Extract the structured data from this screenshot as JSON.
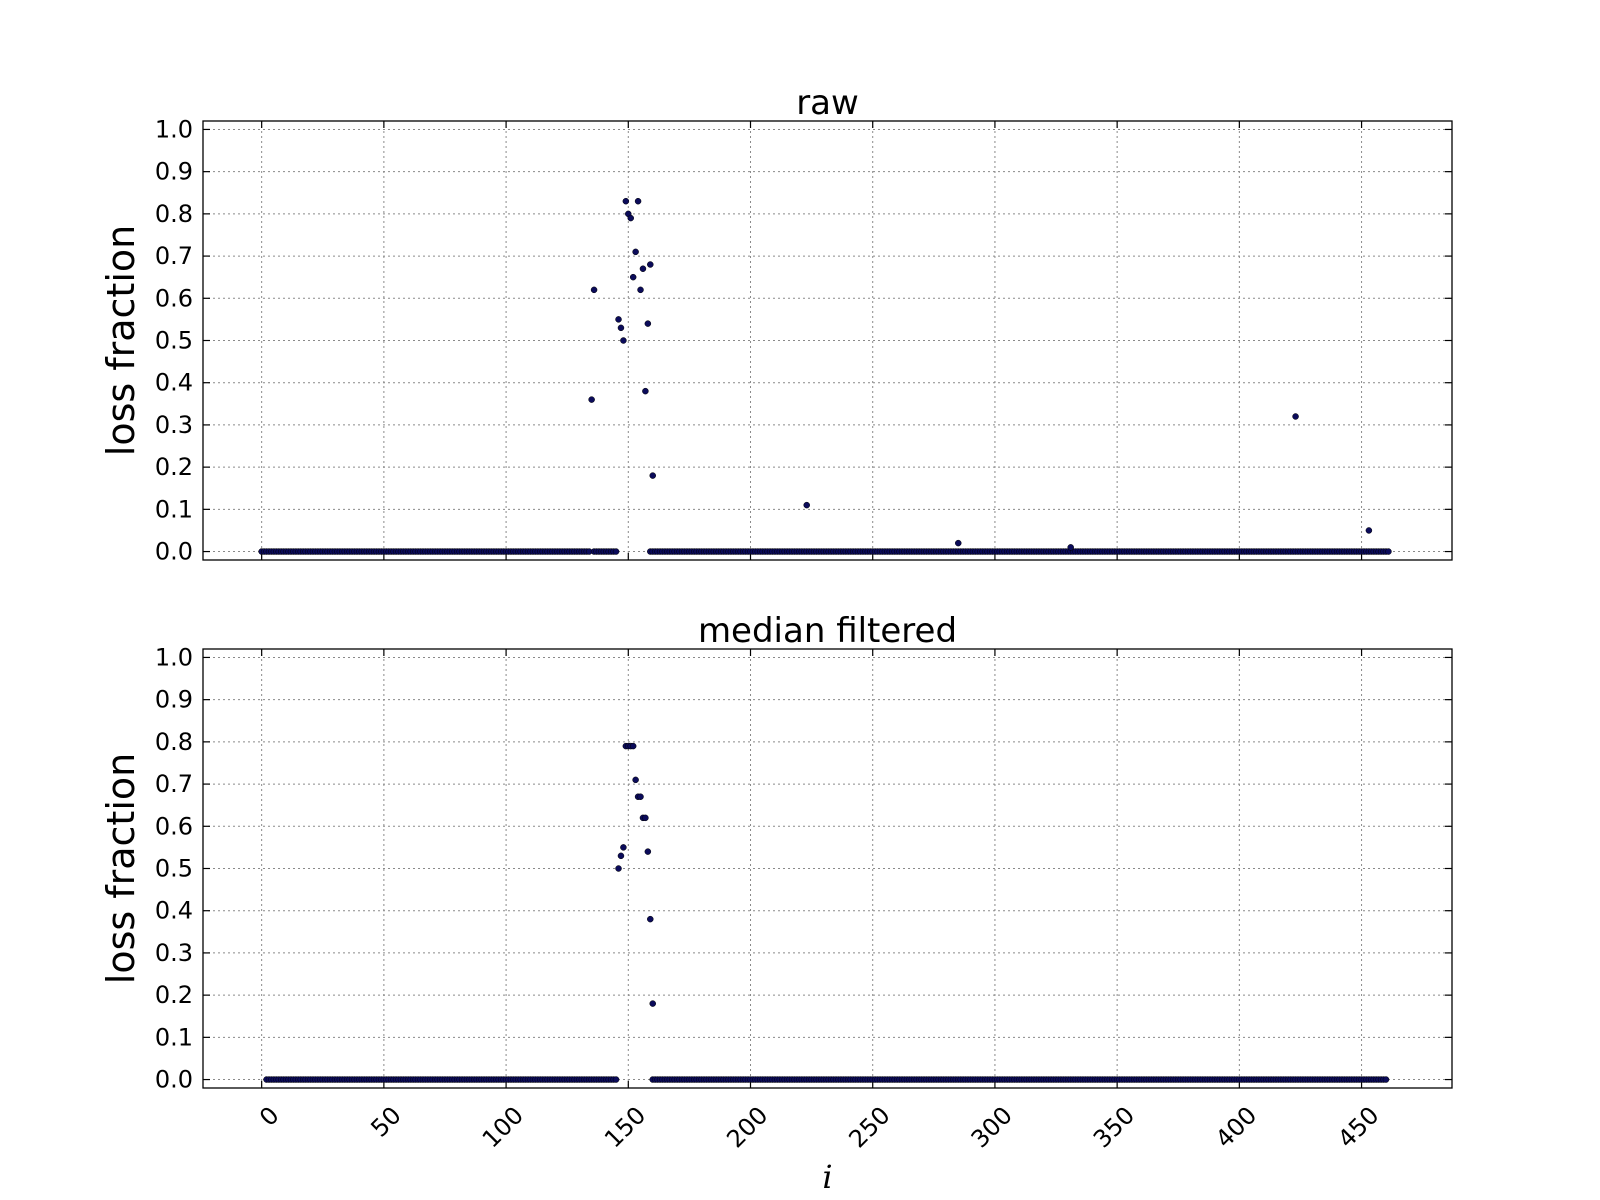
{
  "chart_data": [
    {
      "type": "scatter",
      "title": "raw",
      "xlabel": "",
      "ylabel": "loss fraction",
      "xlim": [
        -24,
        487
      ],
      "ylim": [
        -0.02,
        1.02
      ],
      "xticks": [
        0,
        50,
        100,
        150,
        200,
        250,
        300,
        350,
        400,
        450
      ],
      "yticks": [
        0.0,
        0.1,
        0.2,
        0.3,
        0.4,
        0.5,
        0.6,
        0.7,
        0.8,
        0.9,
        1.0
      ],
      "show_xtick_labels": false,
      "grid": true,
      "marker_color": "#0b0b5a",
      "zero_ranges": [
        [
          0,
          134
        ],
        [
          136,
          145
        ],
        [
          159,
          461
        ]
      ],
      "points": [
        {
          "x": 135,
          "y": 0.36
        },
        {
          "x": 136,
          "y": 0.62
        },
        {
          "x": 146,
          "y": 0.55
        },
        {
          "x": 147,
          "y": 0.53
        },
        {
          "x": 148,
          "y": 0.5
        },
        {
          "x": 149,
          "y": 0.83
        },
        {
          "x": 150,
          "y": 0.8
        },
        {
          "x": 151,
          "y": 0.79
        },
        {
          "x": 152,
          "y": 0.65
        },
        {
          "x": 153,
          "y": 0.71
        },
        {
          "x": 154,
          "y": 0.83
        },
        {
          "x": 155,
          "y": 0.62
        },
        {
          "x": 156,
          "y": 0.67
        },
        {
          "x": 157,
          "y": 0.38
        },
        {
          "x": 158,
          "y": 0.54
        },
        {
          "x": 159,
          "y": 0.68
        },
        {
          "x": 160,
          "y": 0.18
        },
        {
          "x": 223,
          "y": 0.11
        },
        {
          "x": 285,
          "y": 0.02
        },
        {
          "x": 331,
          "y": 0.01
        },
        {
          "x": 423,
          "y": 0.32
        },
        {
          "x": 453,
          "y": 0.05
        }
      ]
    },
    {
      "type": "scatter",
      "title": "median filtered",
      "xlabel": "i",
      "ylabel": "loss fraction",
      "xlim": [
        -24,
        487
      ],
      "ylim": [
        -0.02,
        1.02
      ],
      "xticks": [
        0,
        50,
        100,
        150,
        200,
        250,
        300,
        350,
        400,
        450
      ],
      "yticks": [
        0.0,
        0.1,
        0.2,
        0.3,
        0.4,
        0.5,
        0.6,
        0.7,
        0.8,
        0.9,
        1.0
      ],
      "show_xtick_labels": true,
      "grid": true,
      "marker_color": "#0b0b5a",
      "zero_ranges": [
        [
          2,
          145
        ],
        [
          160,
          460
        ]
      ],
      "points": [
        {
          "x": 146,
          "y": 0.5
        },
        {
          "x": 147,
          "y": 0.53
        },
        {
          "x": 148,
          "y": 0.55
        },
        {
          "x": 149,
          "y": 0.79
        },
        {
          "x": 150,
          "y": 0.79
        },
        {
          "x": 151,
          "y": 0.79
        },
        {
          "x": 152,
          "y": 0.79
        },
        {
          "x": 153,
          "y": 0.71
        },
        {
          "x": 154,
          "y": 0.67
        },
        {
          "x": 155,
          "y": 0.67
        },
        {
          "x": 156,
          "y": 0.62
        },
        {
          "x": 157,
          "y": 0.62
        },
        {
          "x": 158,
          "y": 0.54
        },
        {
          "x": 159,
          "y": 0.38
        },
        {
          "x": 160,
          "y": 0.18
        }
      ]
    }
  ]
}
